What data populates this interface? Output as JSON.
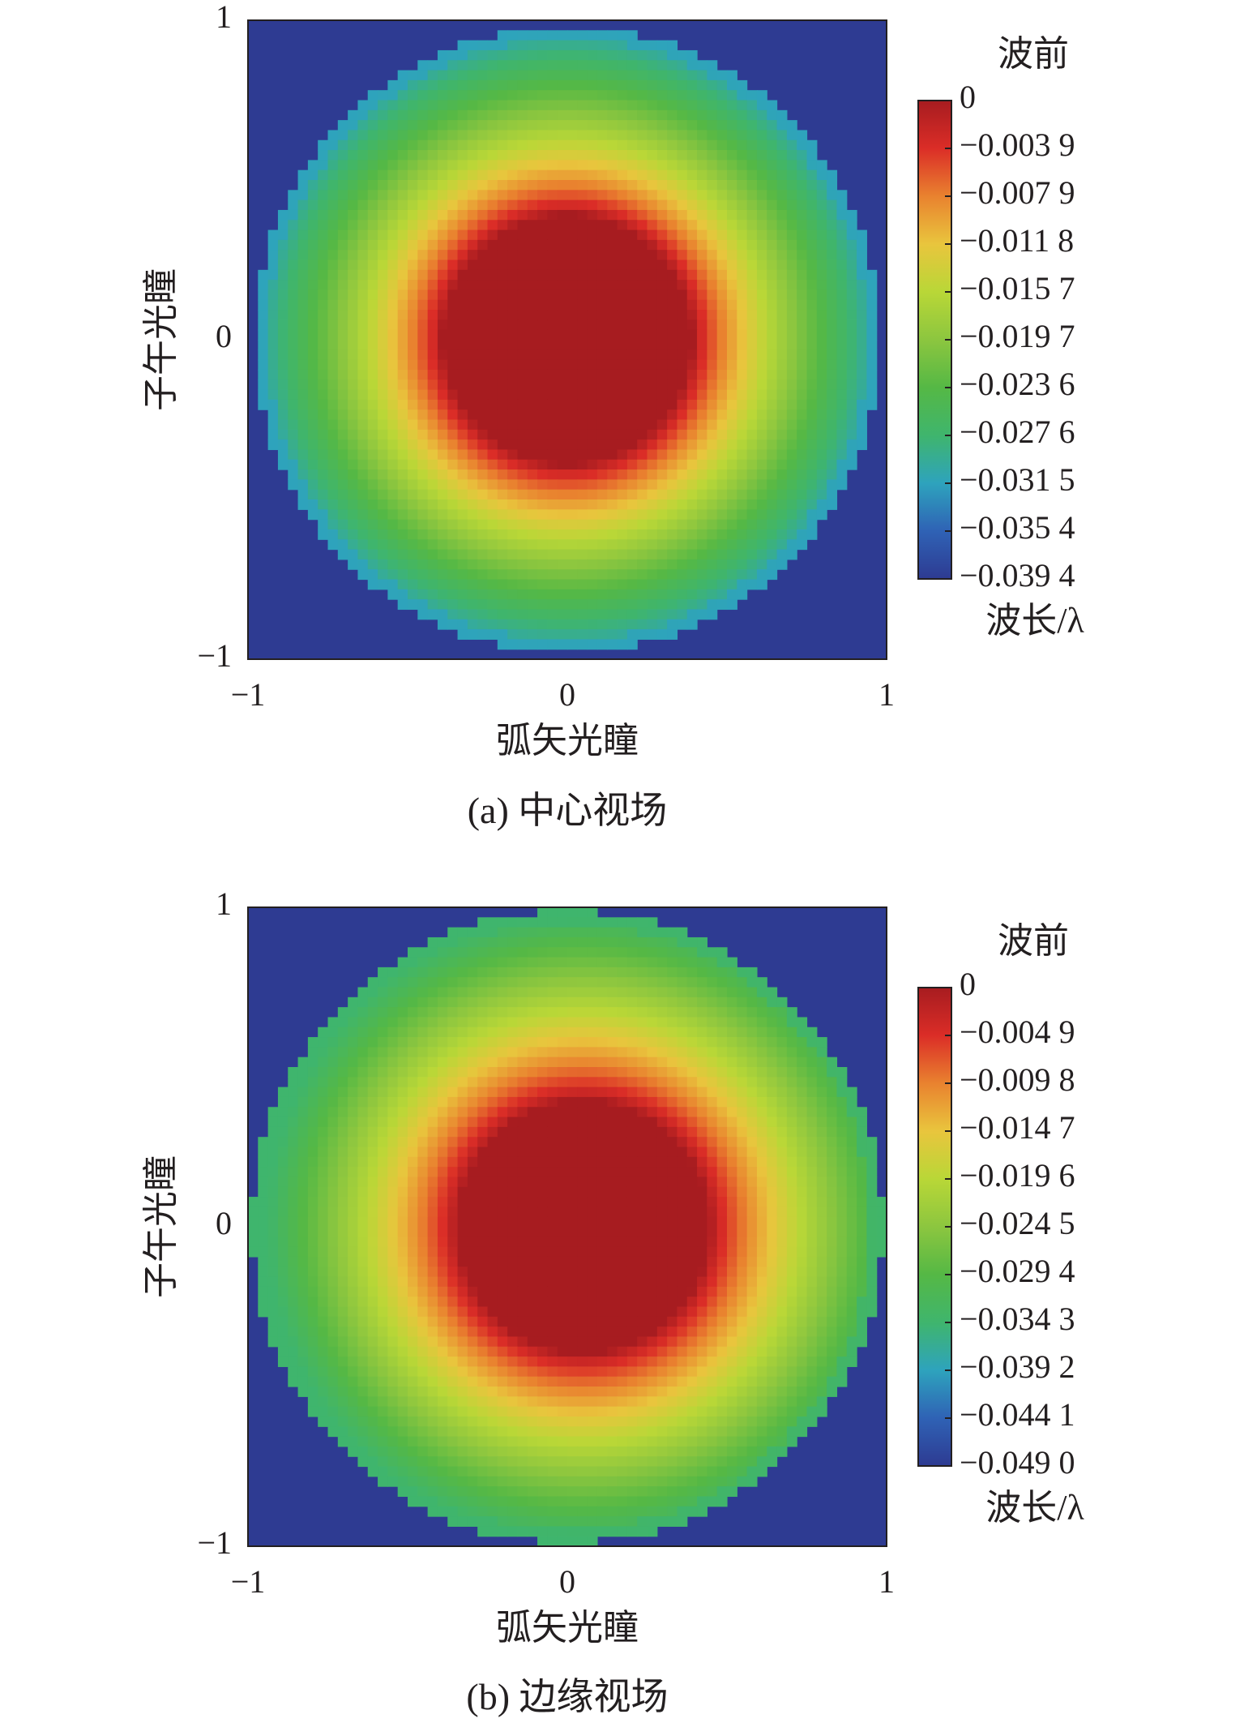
{
  "chart_data": [
    {
      "type": "heatmap",
      "caption": "(a) 中心视场",
      "xlabel": "弧矢光瞳",
      "ylabel": "子午光瞳",
      "xlim": [
        -1,
        1
      ],
      "ylim": [
        -1,
        1
      ],
      "x_ticks": [
        "−1",
        "0",
        "1"
      ],
      "y_ticks": [
        "1",
        "0",
        "−1"
      ],
      "colorbar": {
        "title": "波前",
        "unit_label": "波长/λ",
        "ticks": [
          "0",
          "−0.003 9",
          "−0.007 9",
          "−0.011 8",
          "−0.015 7",
          "−0.019 7",
          "−0.023 6",
          "−0.027 6",
          "−0.031 5",
          "−0.035 4",
          "−0.039 4"
        ],
        "min": -0.0394,
        "max": 0
      },
      "field": {
        "pupil_shape": "circle",
        "pupil_radius": 0.98,
        "center": [
          0,
          0
        ],
        "center_value": 0,
        "edge_value": -0.0315,
        "outside_value": -0.0394
      },
      "grid": false,
      "legend": "right"
    },
    {
      "type": "heatmap",
      "caption": "(b) 边缘视场",
      "xlabel": "弧矢光瞳",
      "ylabel": "子午光瞳",
      "xlim": [
        -1,
        1
      ],
      "ylim": [
        -1,
        1
      ],
      "x_ticks": [
        "−1",
        "0",
        "1"
      ],
      "y_ticks": [
        "1",
        "0",
        "−1"
      ],
      "colorbar": {
        "title": "波前",
        "unit_label": "波长/λ",
        "ticks": [
          "0",
          "−0.004 9",
          "−0.009 8",
          "−0.014 7",
          "−0.019 6",
          "−0.024 5",
          "−0.029 4",
          "−0.034 3",
          "−0.039 2",
          "−0.044 1",
          "−0.049 0"
        ],
        "min": -0.049,
        "max": 0
      },
      "field": {
        "pupil_shape": "circle",
        "pupil_radius": 0.99,
        "center": [
          0.05,
          0
        ],
        "center_value": 0,
        "edge_value": -0.0343,
        "outside_value": -0.049
      },
      "grid": false,
      "legend": "right"
    }
  ]
}
